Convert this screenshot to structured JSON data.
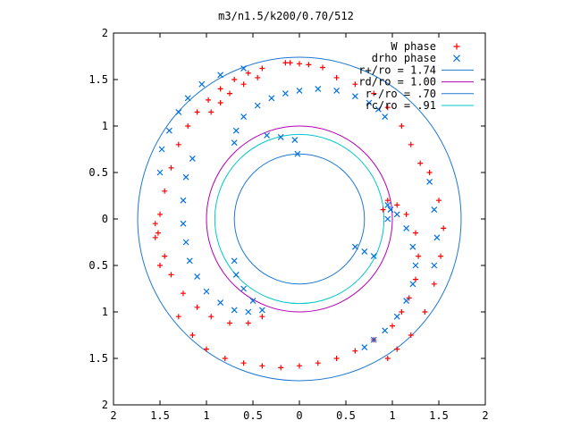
{
  "chart_data": {
    "type": "scatter",
    "title": "m3/n1.5/k200/0.70/512",
    "xlim": [
      -2,
      2
    ],
    "ylim": [
      -2,
      2
    ],
    "x_ticks": [
      -2,
      -1.5,
      -1,
      -0.5,
      0,
      0.5,
      1,
      1.5,
      2
    ],
    "y_ticks": [
      -2,
      -1.5,
      -1,
      -0.5,
      0,
      0.5,
      1,
      1.5,
      2
    ],
    "x_tick_labels": [
      "2",
      "1.5",
      "1",
      "0.5",
      "0",
      "0.5",
      "1",
      "1.5",
      "2"
    ],
    "y_tick_labels": [
      "2",
      "1.5",
      "1",
      "0.5",
      "0",
      "0.5",
      "1",
      "1.5",
      "2"
    ],
    "grid": false,
    "legend_position": "top-right",
    "series": [
      {
        "name": "W phase",
        "marker": "+",
        "color": "#ff0000",
        "points": [
          [
            -0.15,
            1.68
          ],
          [
            -0.1,
            1.68
          ],
          [
            0.0,
            1.67
          ],
          [
            0.1,
            1.66
          ],
          [
            0.25,
            1.63
          ],
          [
            -0.4,
            1.62
          ],
          [
            -0.55,
            1.57
          ],
          [
            -0.7,
            1.5
          ],
          [
            -0.85,
            1.4
          ],
          [
            -0.98,
            1.28
          ],
          [
            -1.1,
            1.15
          ],
          [
            -1.2,
            1.0
          ],
          [
            -1.3,
            0.8
          ],
          [
            -1.38,
            0.55
          ],
          [
            -1.45,
            0.3
          ],
          [
            -1.5,
            0.05
          ],
          [
            -1.52,
            -0.15
          ],
          [
            -1.45,
            -0.4
          ],
          [
            -1.38,
            -0.6
          ],
          [
            -1.25,
            -0.8
          ],
          [
            -1.1,
            -0.95
          ],
          [
            -0.95,
            -1.05
          ],
          [
            -0.75,
            -1.12
          ],
          [
            -0.55,
            -1.12
          ],
          [
            -0.4,
            -1.05
          ],
          [
            -1.55,
            -0.05
          ],
          [
            -1.55,
            -0.2
          ],
          [
            -1.5,
            -0.5
          ],
          [
            -1.3,
            -1.05
          ],
          [
            -1.15,
            -1.25
          ],
          [
            -1.0,
            -1.4
          ],
          [
            -0.8,
            -1.5
          ],
          [
            -0.6,
            -1.55
          ],
          [
            -0.4,
            -1.58
          ],
          [
            -0.2,
            -1.6
          ],
          [
            0.0,
            -1.58
          ],
          [
            0.2,
            -1.55
          ],
          [
            0.4,
            -1.5
          ],
          [
            0.6,
            -1.42
          ],
          [
            0.8,
            -1.3
          ],
          [
            1.0,
            -1.15
          ],
          [
            1.1,
            -1.0
          ],
          [
            1.18,
            -0.85
          ],
          [
            1.25,
            -0.65
          ],
          [
            1.28,
            -0.4
          ],
          [
            1.25,
            -0.15
          ],
          [
            1.15,
            0.05
          ],
          [
            1.05,
            0.15
          ],
          [
            0.95,
            0.2
          ],
          [
            0.9,
            0.1
          ],
          [
            1.4,
            0.5
          ],
          [
            1.5,
            0.2
          ],
          [
            1.55,
            -0.1
          ],
          [
            1.52,
            -0.4
          ],
          [
            1.45,
            -0.7
          ],
          [
            1.35,
            -1.0
          ],
          [
            1.2,
            -1.25
          ],
          [
            1.05,
            -1.4
          ],
          [
            0.95,
            -1.5
          ],
          [
            -0.95,
            1.15
          ],
          [
            -0.85,
            1.25
          ],
          [
            -0.75,
            1.35
          ],
          [
            -0.6,
            1.45
          ],
          [
            -0.45,
            1.52
          ],
          [
            0.4,
            1.52
          ],
          [
            0.6,
            1.45
          ],
          [
            0.8,
            1.35
          ],
          [
            0.95,
            1.2
          ],
          [
            1.1,
            1.0
          ],
          [
            1.2,
            0.8
          ],
          [
            1.3,
            0.6
          ]
        ]
      },
      {
        "name": "drho phase",
        "marker": "x",
        "color": "#0070e0",
        "points": [
          [
            -0.7,
            0.82
          ],
          [
            -0.68,
            0.95
          ],
          [
            -0.6,
            1.1
          ],
          [
            -0.45,
            1.22
          ],
          [
            -0.3,
            1.3
          ],
          [
            -0.15,
            1.35
          ],
          [
            0.0,
            1.38
          ],
          [
            0.2,
            1.4
          ],
          [
            0.4,
            1.38
          ],
          [
            0.6,
            1.32
          ],
          [
            0.75,
            1.25
          ],
          [
            0.85,
            1.18
          ],
          [
            0.92,
            1.1
          ],
          [
            -0.35,
            0.9
          ],
          [
            -0.2,
            0.88
          ],
          [
            -0.05,
            0.85
          ],
          [
            -0.02,
            0.7
          ],
          [
            -0.7,
            -0.45
          ],
          [
            -0.68,
            -0.6
          ],
          [
            -0.6,
            -0.75
          ],
          [
            -0.5,
            -0.88
          ],
          [
            -0.4,
            -0.98
          ],
          [
            -0.55,
            -1.0
          ],
          [
            -0.7,
            -0.98
          ],
          [
            -0.85,
            -0.9
          ],
          [
            -1.0,
            -0.78
          ],
          [
            -1.1,
            -0.62
          ],
          [
            -1.18,
            -0.45
          ],
          [
            -1.22,
            -0.25
          ],
          [
            -1.25,
            -0.05
          ],
          [
            -1.25,
            0.2
          ],
          [
            -1.22,
            0.45
          ],
          [
            -1.15,
            0.65
          ],
          [
            0.95,
            0.15
          ],
          [
            1.05,
            0.05
          ],
          [
            1.15,
            -0.1
          ],
          [
            1.22,
            -0.3
          ],
          [
            1.25,
            -0.5
          ],
          [
            1.22,
            -0.7
          ],
          [
            1.15,
            -0.88
          ],
          [
            1.05,
            -1.05
          ],
          [
            0.92,
            -1.2
          ],
          [
            0.8,
            -1.3
          ],
          [
            0.7,
            -1.38
          ],
          [
            0.6,
            -0.3
          ],
          [
            0.7,
            -0.35
          ],
          [
            0.8,
            -0.4
          ],
          [
            0.95,
            0.0
          ],
          [
            0.98,
            0.1
          ],
          [
            -1.3,
            1.15
          ],
          [
            -1.2,
            1.3
          ],
          [
            -1.05,
            1.45
          ],
          [
            -0.85,
            1.55
          ],
          [
            -0.6,
            1.62
          ],
          [
            -1.4,
            0.95
          ],
          [
            -1.48,
            0.75
          ],
          [
            -1.5,
            0.5
          ],
          [
            1.4,
            0.4
          ],
          [
            1.45,
            0.1
          ],
          [
            1.48,
            -0.2
          ],
          [
            1.45,
            -0.5
          ]
        ]
      }
    ],
    "circles": [
      {
        "name": "r+/ro = 1.74",
        "radius": 1.74,
        "color": "#1e78d2"
      },
      {
        "name": "rd/ro = 1.00",
        "radius": 1.0,
        "color": "#b400b4"
      },
      {
        "name": "r-/ro = .70",
        "radius": 0.7,
        "color": "#1e78d2"
      },
      {
        "name": "rc/ro = .91",
        "radius": 0.91,
        "color": "#00c8c8"
      }
    ]
  }
}
